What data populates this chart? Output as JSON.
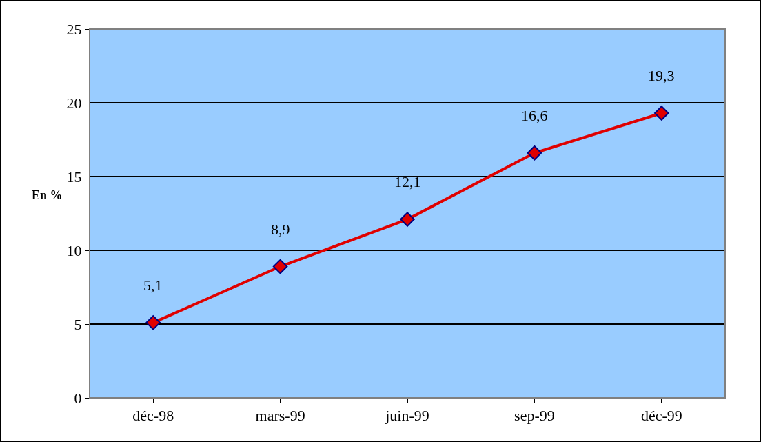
{
  "chart_data": {
    "type": "line",
    "ylabel": "En %",
    "categories": [
      "déc-98",
      "mars-99",
      "juin-99",
      "sep-99",
      "déc-99"
    ],
    "series": [
      {
        "color": "#e00000",
        "values": [
          5.1,
          8.9,
          12.1,
          16.6,
          19.3
        ],
        "value_labels": [
          "5,1",
          "8,9",
          "12,1",
          "16,6",
          "19,3"
        ]
      }
    ],
    "ylim": [
      0,
      25
    ],
    "yticks": [
      0,
      5,
      10,
      15,
      20,
      25
    ],
    "grid": "y",
    "legend": false,
    "marker": "diamond",
    "line_style": "solid"
  }
}
